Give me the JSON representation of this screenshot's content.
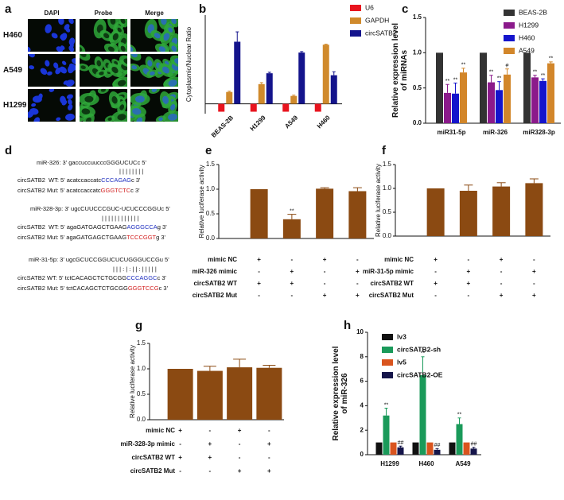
{
  "panel_a": {
    "label": "a",
    "columns": [
      "DAPI",
      "Probe",
      "Merge"
    ],
    "rows": [
      "H460",
      "A549",
      "H1299"
    ]
  },
  "panel_d": {
    "label": "d",
    "lines": [
      {
        "segments": [
          {
            "text": "miR-326: 3' gaccuccuucccGGGUCUCc 5'"
          }
        ]
      },
      {
        "segments": [
          {
            "text": "| | | | | | | |"
          }
        ]
      },
      {
        "segments": [
          {
            "text": "circSATB2  WT: 5' acatccaccatc"
          },
          {
            "text": "CCCAGAG",
            "color": "#1f2fbf"
          },
          {
            "text": "c 3'"
          }
        ]
      },
      {
        "segments": [
          {
            "text": "circSATB2 Mut: 5' acatccaccatc"
          },
          {
            "text": "GGGTCTC",
            "color": "#d21f1f"
          },
          {
            "text": "c 3'"
          }
        ]
      },
      {
        "segments": [
          {
            "text": "miR-328-3p: 3' ugcCUUCCCGUC-UCUCCCGGUc 5'"
          }
        ]
      },
      {
        "segments": [
          {
            "text": "| | | | | | | | | | | |"
          }
        ]
      },
      {
        "segments": [
          {
            "text": "circSATB2  WT: 5' agaGATGAGCTGAAG"
          },
          {
            "text": "AGGGCCA",
            "color": "#1f2fbf"
          },
          {
            "text": "g 3'"
          }
        ]
      },
      {
        "segments": [
          {
            "text": "circSATB2 Mut: 5' agaGATGAGCTGAAG"
          },
          {
            "text": "TCCCGGT",
            "color": "#d21f1f"
          },
          {
            "text": "g 3'"
          }
        ]
      },
      {
        "segments": [
          {
            "text": "miR-31-5p: 3' ugcGCUCCGGUCUCUGGGUCCGu 5'"
          }
        ]
      },
      {
        "segments": [
          {
            "text": "| | | : | : | | : | | | | |"
          }
        ]
      },
      {
        "segments": [
          {
            "text": "circSATB2 WT: 5' tctCACAGCTCTGCGG"
          },
          {
            "text": "CCCAGGC",
            "color": "#1f2fbf"
          },
          {
            "text": "c 3'"
          }
        ]
      },
      {
        "segments": [
          {
            "text": "circSATB2 Mut: 5' tctCACAGCTCTGCGG"
          },
          {
            "text": "GGGTCCG",
            "color": "#d21f1f"
          },
          {
            "text": "c 3'"
          }
        ]
      }
    ]
  },
  "chart_data": [
    {
      "type": "bar",
      "panel_label": "b",
      "y_label": [
        "Cytoplasmic/Nuclear Ratio"
      ],
      "categories": [
        "BEAS-2B",
        "H1299",
        "A549",
        "H460"
      ],
      "ylim": [
        -1,
        9
      ],
      "series": [
        {
          "name": "U6",
          "color": "#e8141e",
          "values": [
            -0.8,
            -0.8,
            -0.8,
            -0.8
          ]
        },
        {
          "name": "GAPDH",
          "color": "#d08a2c",
          "values": [
            1.2,
            2.0,
            0.8,
            6.0
          ],
          "errors": [
            0.08,
            0.15,
            0.08,
            0.05
          ]
        },
        {
          "name": "circSATB2",
          "color": "#14148c",
          "values": [
            6.3,
            3.1,
            5.2,
            2.9
          ],
          "errors": [
            1.0,
            0.1,
            0.1,
            0.35
          ]
        }
      ]
    },
    {
      "type": "bar",
      "panel_label": "c",
      "y_label": [
        "Relative expression level",
        "of miRNAs"
      ],
      "categories": [
        "miR31-5p",
        "miR-326",
        "miR328-3p"
      ],
      "ylim": [
        0,
        1.5
      ],
      "yticks": [
        {
          "value": 0,
          "label": "0.0"
        },
        {
          "value": 0.5,
          "label": "0.5"
        },
        {
          "value": 1,
          "label": "1.0"
        },
        {
          "value": 1.5,
          "label": "1.5"
        }
      ],
      "series": [
        {
          "name": "BEAS-2B",
          "color": "#333333",
          "values": [
            1.0,
            1.0,
            1.0
          ]
        },
        {
          "name": "H1299",
          "color": "#8b1a8b",
          "values": [
            0.43,
            0.58,
            0.65
          ],
          "errors": [
            0.12,
            0.1,
            0.03
          ],
          "significance": [
            "**",
            "**",
            "**"
          ]
        },
        {
          "name": "H460",
          "color": "#1414cc",
          "values": [
            0.42,
            0.47,
            0.6
          ],
          "errors": [
            0.15,
            0.12,
            0.03
          ],
          "significance": [
            "**",
            "**",
            "**"
          ]
        },
        {
          "name": "A549",
          "color": "#d2862a",
          "values": [
            0.72,
            0.69,
            0.85
          ],
          "errors": [
            0.06,
            0.08,
            0.02
          ],
          "significance": [
            "**",
            "#",
            "**"
          ]
        }
      ]
    },
    {
      "type": "bar",
      "panel_label": "e",
      "y_label": [
        "Relative luciferase activity"
      ],
      "color": "#8b4a12",
      "categories": [
        null,
        null,
        null,
        null
      ],
      "values": [
        1.0,
        0.39,
        1.01,
        0.96
      ],
      "errors": [
        null,
        0.1,
        0.02,
        0.07
      ],
      "significance": [
        null,
        "**",
        null,
        null
      ],
      "ylim": [
        0,
        1.5
      ],
      "yticks": [
        {
          "value": 0,
          "label": "0.0"
        },
        {
          "value": 0.5,
          "label": "0.5"
        },
        {
          "value": 1,
          "label": "1.0"
        },
        {
          "value": 1.5,
          "label": "1.5"
        }
      ],
      "conditions": [
        {
          "label": "mimic NC",
          "marks": [
            "+",
            "-",
            "+",
            "-"
          ]
        },
        {
          "label": "miR-326 mimic",
          "marks": [
            "-",
            "+",
            "-",
            "+"
          ]
        },
        {
          "label": "circSATB2 WT",
          "marks": [
            "+",
            "+",
            "-",
            "-"
          ]
        },
        {
          "label": "circSATB2 Mut",
          "marks": [
            "-",
            "-",
            "+",
            "+"
          ]
        }
      ]
    },
    {
      "type": "bar",
      "panel_label": "f",
      "y_label": [
        "Relative luciferase activity"
      ],
      "color": "#8b4a12",
      "categories": [
        null,
        null,
        null,
        null
      ],
      "values": [
        1.0,
        0.95,
        1.04,
        1.11
      ],
      "errors": [
        null,
        0.12,
        0.08,
        0.09
      ],
      "ylim": [
        0,
        1.5
      ],
      "yticks": [
        {
          "value": 0,
          "label": "0.0"
        },
        {
          "value": 0.5,
          "label": "0.5"
        },
        {
          "value": 1,
          "label": "1.0"
        },
        {
          "value": 1.5,
          "label": "1.5"
        }
      ],
      "conditions": [
        {
          "label": "mimic NC",
          "marks": [
            "+",
            "-",
            "+",
            "-"
          ]
        },
        {
          "label": "miR-31-5p mimic",
          "marks": [
            "-",
            "+",
            "-",
            "+"
          ]
        },
        {
          "label": "circSATB2 WT",
          "marks": [
            "+",
            "+",
            "-",
            "-"
          ]
        },
        {
          "label": "circSATB2 Mut",
          "marks": [
            "-",
            "-",
            "+",
            "+"
          ]
        }
      ]
    },
    {
      "type": "bar",
      "panel_label": "g",
      "y_label": [
        "Relative luciferase activity"
      ],
      "color": "#8b4a12",
      "categories": [
        null,
        null,
        null,
        null
      ],
      "values": [
        1.0,
        0.96,
        1.03,
        1.02
      ],
      "errors": [
        null,
        0.09,
        0.16,
        0.05
      ],
      "ylim": [
        0,
        1.5
      ],
      "yticks": [
        {
          "value": 0,
          "label": "0.0"
        },
        {
          "value": 0.5,
          "label": "0.5"
        },
        {
          "value": 1,
          "label": "1.0"
        },
        {
          "value": 1.5,
          "label": "1.5"
        }
      ],
      "conditions": [
        {
          "label": "mimic NC",
          "marks": [
            "+",
            "-",
            "+",
            "-"
          ]
        },
        {
          "label": "miR-328-3p mimic",
          "marks": [
            "-",
            "+",
            "-",
            "+"
          ]
        },
        {
          "label": "circSATB2 WT",
          "marks": [
            "+",
            "+",
            "-",
            "-"
          ]
        },
        {
          "label": "circSATB2 Mut",
          "marks": [
            "-",
            "-",
            "+",
            "+"
          ]
        }
      ]
    },
    {
      "type": "bar",
      "panel_label": "h",
      "y_label": [
        "Relative expression level",
        "of miR-326"
      ],
      "categories": [
        "H1299",
        "H460",
        "A549"
      ],
      "ylim": [
        0,
        10
      ],
      "yticks": [
        0,
        2,
        4,
        6,
        8,
        10
      ],
      "series": [
        {
          "name": "lv3",
          "color": "#111111",
          "values": [
            1.0,
            1.0,
            1.0
          ]
        },
        {
          "name": "circSATB2-sh",
          "color": "#1a9a5a",
          "values": [
            3.2,
            6.5,
            2.5
          ],
          "errors": [
            0.6,
            1.5,
            0.5
          ],
          "significance": [
            "**",
            "**",
            "**"
          ]
        },
        {
          "name": "lv5",
          "color": "#d9541e",
          "values": [
            1.0,
            1.0,
            1.0
          ]
        },
        {
          "name": "circSATB2-OE",
          "color": "#15154a",
          "values": [
            0.6,
            0.4,
            0.5
          ],
          "errors": [
            0.1,
            0.1,
            0.1
          ],
          "significance": [
            "##",
            "##",
            "##"
          ]
        }
      ]
    }
  ]
}
